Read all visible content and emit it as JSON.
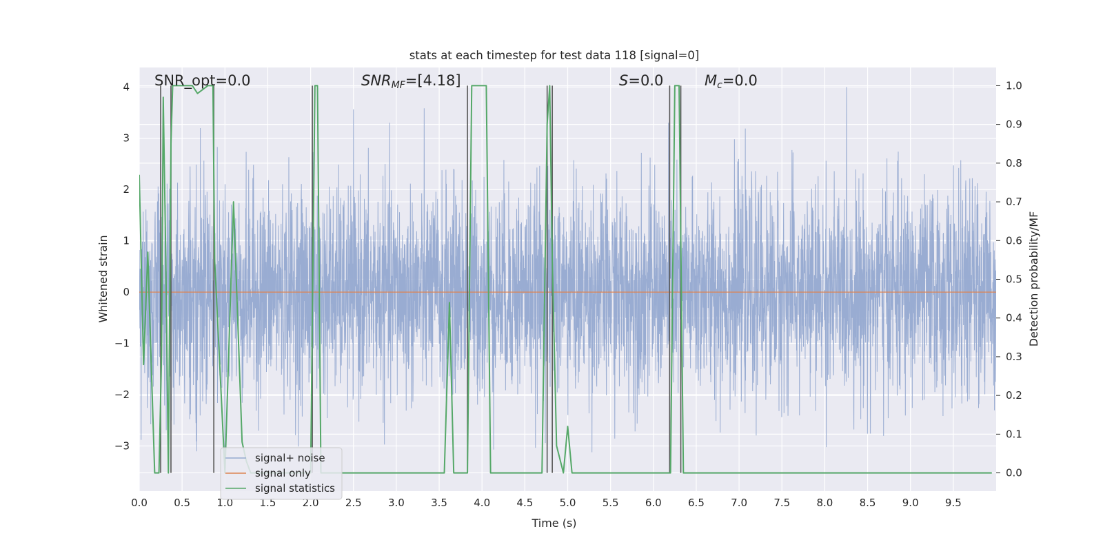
{
  "chart_data": {
    "type": "line",
    "title": "stats at each timestep for test data 118 [signal=0]",
    "xlabel": "Time (s)",
    "ylabel": "Whitened strain",
    "y2label": "Detection probability/MF",
    "xlim": [
      0,
      10
    ],
    "ylim": [
      -3.88,
      4.38
    ],
    "y2lim": [
      -0.047,
      1.047
    ],
    "xticks": [
      "0.0",
      "0.5",
      "1.0",
      "1.5",
      "2.0",
      "2.5",
      "3.0",
      "3.5",
      "4.0",
      "4.5",
      "5.0",
      "5.5",
      "6.0",
      "6.5",
      "7.0",
      "7.5",
      "8.0",
      "8.5",
      "9.0",
      "9.5"
    ],
    "yticks": [
      "−3",
      "−2",
      "−1",
      "0",
      "1",
      "2",
      "3",
      "4"
    ],
    "y2ticks": [
      "0.0",
      "0.1",
      "0.2",
      "0.3",
      "0.4",
      "0.5",
      "0.6",
      "0.7",
      "0.8",
      "0.9",
      "1.0"
    ],
    "grid": true,
    "legend_placement": "lower-left",
    "annotations": {
      "snr_opt": "SNR_opt=0.0",
      "snr_mf_sym": "SNR",
      "snr_mf_sub": "MF",
      "snr_mf_val": "=[4.18]",
      "s_sym": "S",
      "s_val": "=0.0",
      "mc_sym": "M",
      "mc_sub": "c",
      "mc_val": "=0.0"
    },
    "series": [
      {
        "name": "signal+ noise",
        "color": "#95a9d0",
        "axis": "left",
        "description_values": "whitened noise, approximately Gaussian with std ~1, range about -3.3 to 4.0"
      },
      {
        "name": "signal only",
        "color": "#dd8452",
        "axis": "left",
        "x": [
          0,
          10
        ],
        "values": [
          0,
          0
        ]
      },
      {
        "name": "signal statistics",
        "color": "#55a868",
        "axis": "right",
        "x": [
          0.0,
          0.05,
          0.1,
          0.12,
          0.18,
          0.23,
          0.26,
          0.28,
          0.31,
          0.34,
          0.37,
          0.39,
          0.42,
          0.44,
          0.46,
          0.5,
          0.56,
          0.62,
          0.68,
          0.74,
          0.8,
          0.86,
          0.88,
          0.95,
          1.0,
          1.1,
          1.2,
          1.25,
          1.3,
          1.6,
          1.9,
          2.0,
          2.05,
          2.08,
          2.12,
          2.2,
          2.5,
          2.8,
          3.2,
          3.56,
          3.62,
          3.67,
          3.8,
          3.83,
          3.88,
          3.92,
          4.0,
          4.05,
          4.1,
          4.2,
          4.5,
          4.7,
          4.76,
          4.79,
          4.82,
          4.87,
          4.95,
          5.0,
          5.05,
          5.5,
          6.0,
          6.2,
          6.25,
          6.3,
          6.35,
          6.4,
          7.0,
          8.0,
          9.0,
          9.95
        ],
        "values": [
          0.77,
          0.28,
          0.57,
          0.42,
          0.0,
          0.0,
          0.3,
          0.97,
          0.55,
          0.0,
          0.85,
          1.0,
          1.0,
          1.0,
          1.0,
          1.0,
          1.0,
          1.0,
          0.98,
          0.99,
          1.0,
          1.0,
          0.55,
          0.23,
          0.0,
          0.7,
          0.08,
          0.03,
          0.0,
          0.0,
          0.0,
          0.0,
          1.0,
          1.0,
          0.0,
          0.0,
          0.0,
          0.0,
          0.0,
          0.0,
          0.44,
          0.0,
          0.0,
          0.0,
          1.0,
          1.0,
          1.0,
          1.0,
          0.0,
          0.0,
          0.0,
          0.0,
          0.9,
          1.0,
          0.55,
          0.07,
          0.0,
          0.12,
          0.0,
          0.0,
          0.0,
          0.0,
          1.0,
          1.0,
          0.0,
          0.0,
          0.0,
          0.0,
          0.0,
          0.0
        ]
      },
      {
        "name": "",
        "color": "#555555",
        "axis": "right",
        "type": "vertical-lines",
        "x": [
          0.25,
          0.37,
          0.87,
          2.02,
          3.83,
          4.76,
          4.82,
          6.19,
          6.32
        ]
      }
    ]
  }
}
